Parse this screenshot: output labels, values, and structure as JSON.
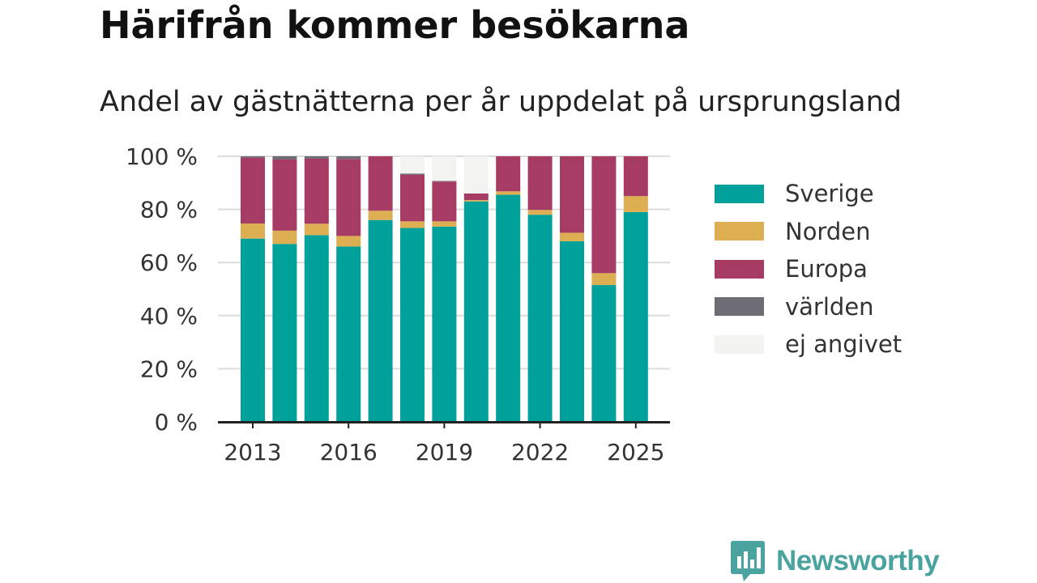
{
  "header": {
    "title": "Härifrån kommer besökarna",
    "subtitle": "Andel av gästnätterna per år uppdelat på ursprungsland"
  },
  "chart_data": {
    "type": "bar",
    "stacked": true,
    "categories": [
      "2013",
      "2014",
      "2015",
      "2016",
      "2017",
      "2018",
      "2019",
      "2020",
      "2021",
      "2022",
      "2023",
      "2024",
      "2025"
    ],
    "x_tick_labels": [
      "2013",
      "2016",
      "2019",
      "2022",
      "2025"
    ],
    "y_tick_labels": [
      "0 %",
      "20 %",
      "40 %",
      "60 %",
      "80 %",
      "100 %"
    ],
    "ylim": [
      0,
      100
    ],
    "grid": true,
    "legend_position": "right",
    "series": [
      {
        "name": "Sverige",
        "color": "#00a19a",
        "values": [
          69,
          67,
          70.3,
          66,
          76,
          73,
          73.5,
          83,
          85.5,
          78,
          68,
          51.5,
          79
        ]
      },
      {
        "name": "Norden",
        "color": "#deae53",
        "values": [
          5.7,
          5,
          4.3,
          4,
          3.5,
          2.5,
          2,
          0.5,
          1.3,
          1.8,
          3.2,
          4.5,
          6
        ]
      },
      {
        "name": "Europa",
        "color": "#a63b63",
        "values": [
          24.8,
          26.8,
          24.5,
          29,
          20.5,
          17.5,
          15,
          2.5,
          13.2,
          20.2,
          28.8,
          44,
          15
        ]
      },
      {
        "name": "världen",
        "color": "#6e6d75",
        "values": [
          0.5,
          1.2,
          0.9,
          1,
          0,
          0.5,
          0.2,
          0,
          0,
          0,
          0,
          0,
          0
        ]
      },
      {
        "name": "ej angivet",
        "color": "#f3f3f2",
        "values": [
          0,
          0,
          0,
          0,
          0,
          6.5,
          9.3,
          14,
          0,
          0,
          0,
          0,
          0
        ]
      }
    ]
  },
  "logo": {
    "text": "Newsworthy",
    "text_color": "#4ba3a0",
    "icon_name": "newsworthy-logo-icon"
  }
}
